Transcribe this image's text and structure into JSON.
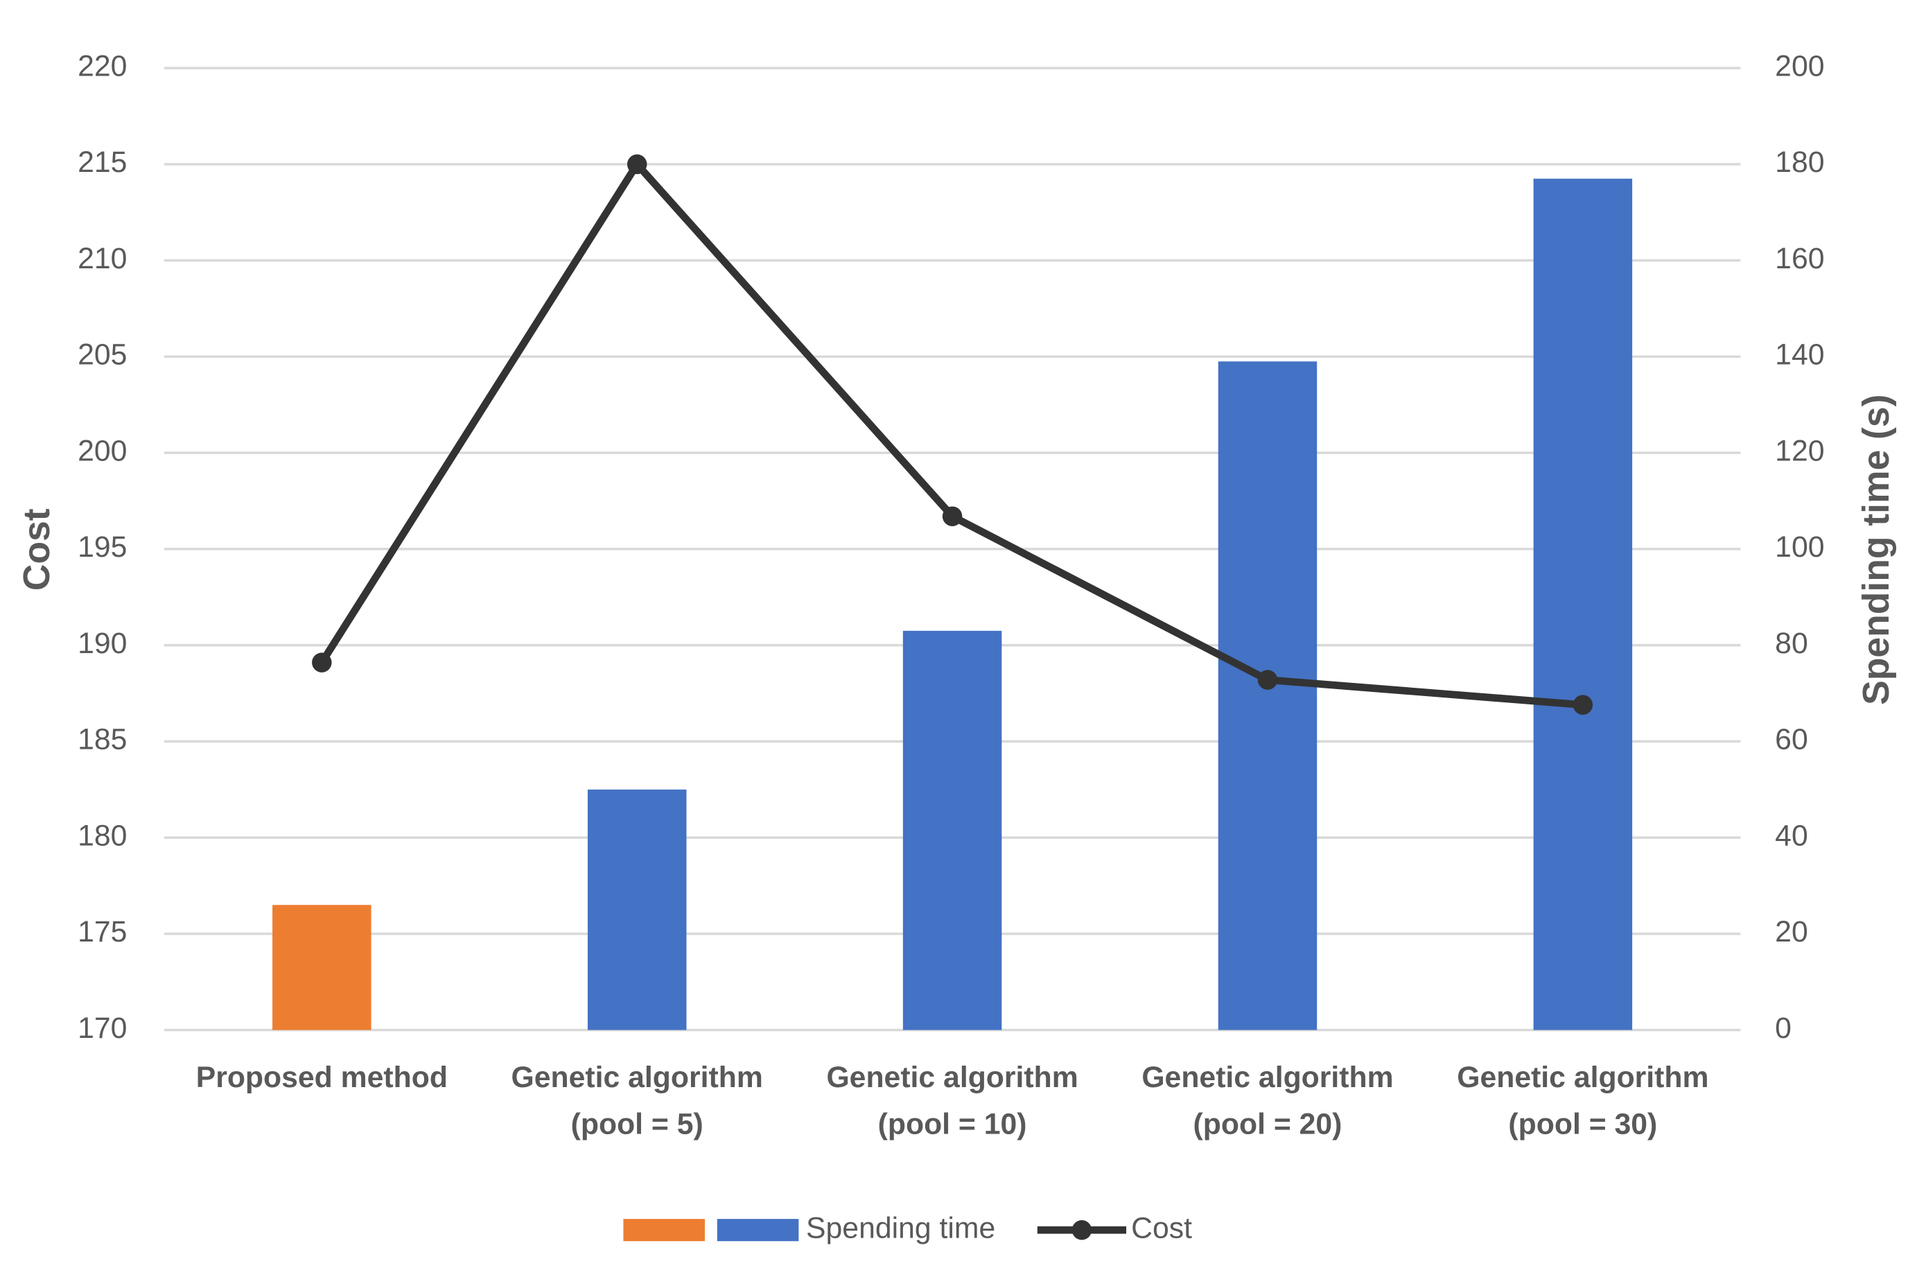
{
  "chart_data": {
    "type": "bar",
    "categories": [
      "Proposed method",
      "Genetic algorithm\n(pool = 5)",
      "Genetic algorithm\n(pool = 10)",
      "Genetic algorithm\n(pool = 20)",
      "Genetic algorithm\n(pool = 30)"
    ],
    "series": [
      {
        "name": "Spending time",
        "type": "bar",
        "axis": "y2",
        "colors": [
          "#ed7d31",
          "#4472c4",
          "#4472c4",
          "#4472c4",
          "#4472c4"
        ],
        "values": [
          26,
          50,
          83,
          139,
          177
        ]
      },
      {
        "name": "Cost",
        "type": "line",
        "color": "#333333",
        "values": [
          189.1,
          215,
          196.7,
          188.2,
          186.9
        ]
      }
    ],
    "ylabel": "Cost",
    "y2label": "Spending time (s)",
    "ylim": [
      170,
      220
    ],
    "yticks": [
      170,
      175,
      180,
      185,
      190,
      195,
      200,
      205,
      210,
      215,
      220
    ],
    "y2lim": [
      0,
      200
    ],
    "y2ticks": [
      0,
      20,
      40,
      60,
      80,
      100,
      120,
      140,
      160,
      180,
      200
    ],
    "grid": true,
    "legend": "bottom"
  }
}
